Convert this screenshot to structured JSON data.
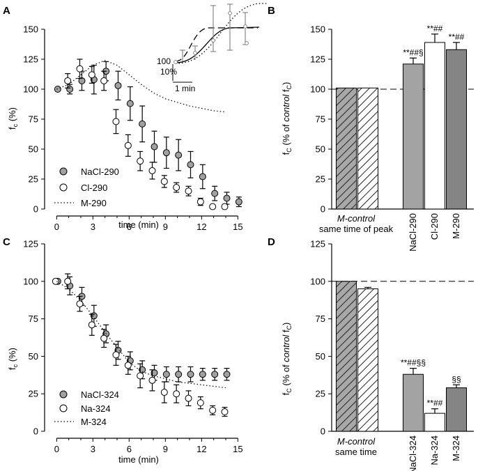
{
  "colors": {
    "gray_marker": "#a0a0a0",
    "bar_mid": "#a3a3a3",
    "bar_dark": "#858585",
    "inset_gray": "#888888"
  },
  "chart_data": [
    {
      "panel": "A",
      "type": "scatter",
      "xlabel": "time (min)",
      "ylabel_main": "f",
      "ylabel_sub": "c",
      "ylabel_tail": " (%)",
      "xlim": [
        -1,
        15.5
      ],
      "ylim": [
        0,
        150
      ],
      "xticks": [
        0,
        3,
        6,
        9,
        12,
        15
      ],
      "yticks": [
        0,
        25,
        50,
        75,
        100,
        125,
        150
      ],
      "series": [
        {
          "name": "NaCl-290",
          "marker": "gray",
          "x": [
            0,
            1,
            2,
            3,
            4,
            5,
            6,
            7,
            8,
            9,
            10,
            11,
            12,
            13,
            14,
            15
          ],
          "y": [
            100,
            100,
            107,
            108,
            115,
            103,
            88,
            71,
            52,
            47,
            45,
            37,
            27,
            13,
            9,
            6
          ],
          "err": [
            0,
            4,
            8,
            12,
            8,
            12,
            14,
            15,
            13,
            13,
            13,
            11,
            10,
            6,
            5,
            4
          ]
        },
        {
          "name": "Cl-290",
          "marker": "white",
          "x": [
            1,
            2,
            3,
            4,
            5,
            6,
            7,
            8,
            9,
            10,
            11,
            12,
            13,
            14
          ],
          "y": [
            107,
            117,
            112,
            107,
            73,
            53,
            40,
            32,
            23,
            18,
            15,
            6,
            2,
            2
          ],
          "err": [
            6,
            8,
            7,
            8,
            10,
            9,
            8,
            7,
            5,
            4,
            4,
            3,
            1,
            1
          ]
        },
        {
          "name": "M-290",
          "style": "dotted",
          "x": [
            0,
            1,
            2,
            3,
            4,
            5,
            6,
            7,
            8,
            9,
            10,
            11,
            12,
            13,
            14
          ],
          "y": [
            100,
            104,
            112,
            120,
            124,
            120,
            112,
            104,
            97,
            92,
            89,
            86,
            84,
            82,
            81
          ]
        }
      ],
      "inset": {
        "scale_label": "10%",
        "time_label": "1 min",
        "baseline_label": "100"
      }
    },
    {
      "panel": "B",
      "type": "bar",
      "ylabel_main": "f",
      "ylabel_sub": "C",
      "ylabel_pre": " (% of ",
      "ylabel_italic": "control",
      "ylabel_post": " f",
      "ylabel_post_sub": "C",
      "ylabel_close": ")",
      "ylim": [
        0,
        150
      ],
      "yticks": [
        0,
        25,
        50,
        75,
        100,
        125,
        150
      ],
      "group_label_italic": "M-control",
      "group_label": "same time of peak",
      "bars": [
        {
          "label": "",
          "value": 101,
          "err": 0,
          "fill": "hatch-gray",
          "annotation": ""
        },
        {
          "label": "",
          "value": 101,
          "err": 0,
          "fill": "hatch-white",
          "annotation": ""
        },
        {
          "label": "NaCl-290",
          "value": 121,
          "err": 5,
          "fill": "gray",
          "annotation": "**##§"
        },
        {
          "label": "Cl-290",
          "value": 139,
          "err": 7,
          "fill": "white",
          "annotation": "**##"
        },
        {
          "label": "M-290",
          "value": 133,
          "err": 6,
          "fill": "dark",
          "annotation": "**##"
        }
      ]
    },
    {
      "panel": "C",
      "type": "scatter",
      "xlabel": "time (min)",
      "ylabel_main": "f",
      "ylabel_sub": "c",
      "ylabel_tail": " (%)",
      "xlim": [
        -1,
        15.5
      ],
      "ylim": [
        0,
        125
      ],
      "xticks": [
        0,
        3,
        6,
        9,
        12,
        15
      ],
      "yticks": [
        0,
        25,
        50,
        75,
        100,
        125
      ],
      "series": [
        {
          "name": "NaCl-324",
          "marker": "gray",
          "x": [
            0,
            1,
            2,
            3,
            4,
            5,
            6,
            7,
            8,
            9,
            10,
            11,
            12,
            13,
            14
          ],
          "y": [
            100,
            97,
            90,
            77,
            65,
            54,
            47,
            41,
            39,
            38,
            38,
            38,
            38,
            38,
            38
          ],
          "err": [
            0,
            6,
            6,
            7,
            6,
            6,
            6,
            6,
            5,
            5,
            5,
            5,
            4,
            4,
            4
          ]
        },
        {
          "name": "Na-324",
          "marker": "white",
          "x": [
            0,
            1,
            2,
            3,
            4,
            5,
            6,
            7,
            8,
            9,
            10,
            11,
            12,
            13,
            14
          ],
          "y": [
            100,
            100,
            85,
            71,
            62,
            51,
            44,
            37,
            34,
            26,
            25,
            22,
            19,
            14,
            13
          ],
          "err": [
            0,
            5,
            5,
            7,
            6,
            7,
            6,
            8,
            7,
            7,
            6,
            5,
            4,
            3,
            3
          ]
        },
        {
          "name": "M-324",
          "style": "dotted",
          "x": [
            0,
            1,
            2,
            3,
            4,
            5,
            6,
            7,
            8,
            9,
            10,
            11,
            12,
            13,
            14
          ],
          "y": [
            100,
            95,
            87,
            77,
            66,
            56,
            46,
            40,
            37,
            35,
            33,
            32,
            31,
            30,
            29
          ]
        }
      ]
    },
    {
      "panel": "D",
      "type": "bar",
      "ylabel_main": "f",
      "ylabel_sub": "C",
      "ylabel_pre": " (% of ",
      "ylabel_italic": "control",
      "ylabel_post": " f",
      "ylabel_post_sub": "C",
      "ylabel_close": ")",
      "ylim": [
        0,
        125
      ],
      "yticks": [
        0,
        25,
        50,
        75,
        100,
        125
      ],
      "group_label_italic": "M-control",
      "group_label": "same time",
      "bars": [
        {
          "label": "",
          "value": 100,
          "err": 0,
          "fill": "hatch-gray",
          "annotation": ""
        },
        {
          "label": "",
          "value": 95,
          "err": 1,
          "fill": "hatch-white",
          "annotation": ""
        },
        {
          "label": "NaCl-324",
          "value": 38,
          "err": 4,
          "fill": "gray",
          "annotation": "**##§§"
        },
        {
          "label": "Na-324",
          "value": 12,
          "err": 3,
          "fill": "white",
          "annotation": "**##"
        },
        {
          "label": "M-324",
          "value": 29,
          "err": 2,
          "fill": "dark",
          "annotation": "§§"
        }
      ]
    }
  ]
}
